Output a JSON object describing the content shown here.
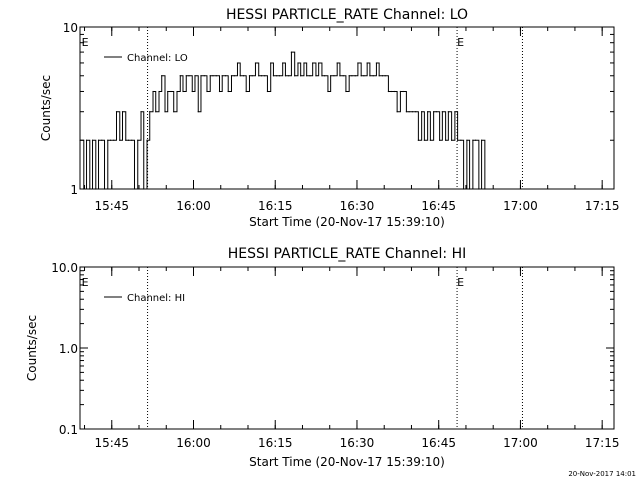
{
  "footer": {
    "timestamp": "20-Nov-2017 14:01"
  },
  "chart_data": [
    {
      "type": "line",
      "title": "HESSI PARTICLE_RATE Channel: LO",
      "xlabel": "Start Time (20-Nov-17 15:39:10)",
      "ylabel": "Counts/sec",
      "yscale": "log",
      "ylim": [
        1,
        10
      ],
      "ytick_labels": [
        "1",
        "10"
      ],
      "xlim_minutes_after_start": [
        0,
        98
      ],
      "xticks_minutes": [
        5.83,
        20.83,
        35.83,
        50.83,
        65.83,
        80.83,
        95.83
      ],
      "xtick_labels": [
        "15:45",
        "16:00",
        "16:15",
        "16:30",
        "16:45",
        "17:00",
        "17:15"
      ],
      "legend": {
        "position": "top-left",
        "entries": [
          "Channel: LO"
        ]
      },
      "event_flags": [
        {
          "label": "E",
          "minute": 0.3
        },
        {
          "label": "E",
          "minute": 69.2
        }
      ],
      "vlines_dotted_minutes": [
        12.4,
        69.2,
        81.2
      ],
      "series": [
        {
          "name": "Channel: LO",
          "x": [
            0,
            0.7,
            1.2,
            1.8,
            2.3,
            2.9,
            3.4,
            4,
            4.5,
            5.1,
            5.6,
            6.2,
            6.7,
            7.3,
            7.8,
            8.4,
            8.9,
            9.5,
            10,
            10.6,
            11.2,
            11.7,
            12.3,
            12.8,
            13.4,
            13.9,
            14.5,
            15,
            15.6,
            16.1,
            16.7,
            17.2,
            17.8,
            18.4,
            18.9,
            19.5,
            20,
            20.6,
            21.1,
            21.7,
            22.2,
            22.8,
            23.3,
            23.9,
            24.4,
            25,
            25.6,
            26.1,
            26.7,
            27.2,
            27.8,
            28.3,
            28.9,
            29.4,
            30,
            30.5,
            31.1,
            31.6,
            32.2,
            32.8,
            33.3,
            33.9,
            34.4,
            35,
            35.5,
            36.1,
            36.6,
            37.2,
            37.7,
            38.3,
            38.8,
            39.4,
            40,
            40.5,
            41.1,
            41.6,
            42.2,
            42.7,
            43.3,
            43.8,
            44.4,
            44.9,
            45.5,
            46,
            46.6,
            47.2,
            47.7,
            48.3,
            48.8,
            49.4,
            49.9,
            50.5,
            51,
            51.6,
            52.1,
            52.7,
            53.2,
            53.8,
            54.4,
            54.9,
            55.5,
            56,
            56.6,
            57.1,
            57.7,
            58.2,
            58.8,
            59.3,
            59.9,
            60.4,
            61,
            61.6,
            62.1,
            62.7,
            63.2,
            63.8,
            64.3,
            64.9,
            65.4,
            66,
            66.5,
            67.1,
            67.6,
            68.2,
            68.8,
            69.3,
            69.9,
            70.4,
            71,
            71.5,
            72.1,
            72.6,
            73.2,
            73.7,
            74.3
          ],
          "y": [
            2,
            1,
            2,
            1,
            2,
            1,
            2,
            2,
            1,
            2,
            2,
            2,
            3,
            2,
            3,
            2,
            2,
            2,
            1,
            2,
            3,
            1,
            2,
            3,
            4,
            3,
            4,
            5,
            3,
            4,
            4,
            3,
            4,
            5,
            4,
            5,
            5,
            4,
            5,
            3,
            5,
            5,
            4,
            5,
            5,
            5,
            4,
            5,
            5,
            4,
            5,
            5,
            6,
            5,
            5,
            4,
            5,
            5,
            6,
            5,
            5,
            5,
            4,
            6,
            5,
            5,
            5,
            6,
            5,
            5,
            7,
            5,
            6,
            5,
            6,
            5,
            5,
            6,
            5,
            6,
            5,
            5,
            4,
            5,
            5,
            6,
            5,
            5,
            4,
            5,
            5,
            5,
            6,
            5,
            5,
            6,
            5,
            5,
            6,
            5,
            5,
            5,
            4,
            4,
            4,
            3,
            4,
            4,
            3,
            3,
            3,
            3,
            2,
            3,
            2,
            3,
            2,
            3,
            3,
            2,
            3,
            2,
            3,
            2,
            3,
            2,
            2,
            1,
            2,
            1,
            2,
            2,
            1,
            2,
            1
          ]
        }
      ]
    },
    {
      "type": "line",
      "title": "HESSI PARTICLE_RATE Channel: HI",
      "xlabel": "Start Time (20-Nov-17 15:39:10)",
      "ylabel": "Counts/sec",
      "yscale": "log",
      "ylim": [
        0.1,
        10
      ],
      "ytick_labels": [
        "0.1",
        "1.0",
        "10.0"
      ],
      "xlim_minutes_after_start": [
        0,
        98
      ],
      "xticks_minutes": [
        5.83,
        20.83,
        35.83,
        50.83,
        65.83,
        80.83,
        95.83
      ],
      "xtick_labels": [
        "15:45",
        "16:00",
        "16:15",
        "16:30",
        "16:45",
        "17:00",
        "17:15"
      ],
      "legend": {
        "position": "top-left",
        "entries": [
          "Channel: HI"
        ]
      },
      "event_flags": [
        {
          "label": "E",
          "minute": 0.3
        },
        {
          "label": "E",
          "minute": 69.2
        }
      ],
      "vlines_dotted_minutes": [
        12.4,
        69.2,
        81.2
      ],
      "series": [
        {
          "name": "Channel: HI",
          "x": [],
          "y": []
        }
      ]
    }
  ]
}
